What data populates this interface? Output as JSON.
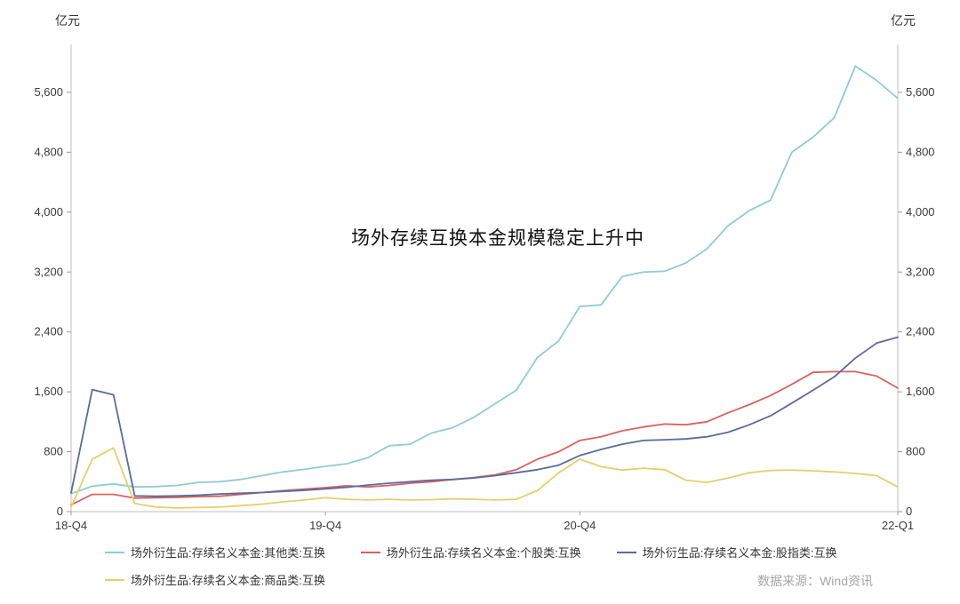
{
  "header": {
    "unit_left": "亿元",
    "unit_right": "亿元"
  },
  "annotation": "场外存续互换本金规模稳定上升中",
  "footer": {
    "source": "数据来源：Wind资讯"
  },
  "chart_data": {
    "type": "line",
    "title": "场外存续互换本金规模稳定上升中",
    "ylabel": "亿元",
    "grid": false,
    "legend_position": "bottom",
    "ylim": [
      0,
      6240
    ],
    "y_ticks": [
      0,
      800,
      1600,
      2400,
      3200,
      4000,
      4800,
      5600
    ],
    "x_tick_labels": [
      "18-Q4",
      "19-Q4",
      "20-Q4",
      "22-Q1"
    ],
    "x_tick_positions": [
      0,
      12,
      24,
      39
    ],
    "series": [
      {
        "name": "other",
        "label": "场外衍生品:存续名义本金:其他类:互换",
        "color": "#8fccd2",
        "values": [
          240,
          340,
          370,
          330,
          335,
          350,
          390,
          400,
          430,
          480,
          530,
          565,
          605,
          640,
          720,
          880,
          900,
          1050,
          1120,
          1260,
          1440,
          1620,
          2060,
          2280,
          2740,
          2760,
          3140,
          3200,
          3210,
          3320,
          3510,
          3820,
          4020,
          4160,
          4800,
          5000,
          5260,
          5950,
          5760,
          5520
        ]
      },
      {
        "name": "single-stock",
        "label": "场外衍生品:存续名义本金:个股类:互换",
        "color": "#d8625c",
        "values": [
          90,
          230,
          230,
          180,
          185,
          190,
          200,
          205,
          230,
          255,
          280,
          300,
          320,
          345,
          330,
          350,
          380,
          400,
          430,
          455,
          490,
          560,
          700,
          800,
          950,
          1000,
          1080,
          1130,
          1170,
          1160,
          1200,
          1320,
          1430,
          1550,
          1700,
          1860,
          1870,
          1870,
          1810,
          1650
        ]
      },
      {
        "name": "stock-index",
        "label": "场外衍生品:存续名义本金:股指类:互换",
        "color": "#5a6b9e",
        "values": [
          250,
          1630,
          1560,
          210,
          205,
          210,
          220,
          235,
          245,
          255,
          270,
          285,
          305,
          325,
          355,
          380,
          400,
          420,
          430,
          450,
          480,
          520,
          560,
          620,
          750,
          830,
          900,
          950,
          960,
          970,
          1000,
          1060,
          1160,
          1280,
          1450,
          1620,
          1800,
          2050,
          2250,
          2330
        ]
      },
      {
        "name": "commodity",
        "label": "场外衍生品:存续名义本金:商品类:互换",
        "color": "#e6ce6d",
        "values": [
          60,
          700,
          850,
          110,
          60,
          50,
          55,
          60,
          80,
          100,
          130,
          155,
          185,
          165,
          155,
          165,
          155,
          160,
          170,
          165,
          155,
          165,
          280,
          520,
          700,
          600,
          555,
          580,
          560,
          420,
          390,
          450,
          520,
          550,
          555,
          545,
          530,
          510,
          480,
          330
        ]
      }
    ]
  }
}
